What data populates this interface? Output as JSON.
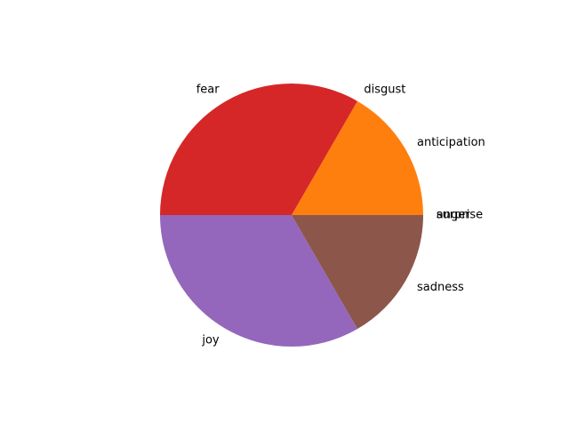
{
  "chart_data": {
    "type": "pie",
    "title": "",
    "start_angle_deg": 0,
    "counterclockwise": true,
    "slices": [
      {
        "label": "anger",
        "value": 0,
        "color": "#1f77b4"
      },
      {
        "label": "anticipation",
        "value": 1,
        "color": "#ff7f0e"
      },
      {
        "label": "disgust",
        "value": 0,
        "color": "#2ca02c"
      },
      {
        "label": "fear",
        "value": 2,
        "color": "#d62728"
      },
      {
        "label": "joy",
        "value": 2,
        "color": "#9467bd"
      },
      {
        "label": "sadness",
        "value": 1,
        "color": "#8c564b"
      },
      {
        "label": "surprise",
        "value": 0,
        "color": "#e377c2"
      }
    ]
  }
}
